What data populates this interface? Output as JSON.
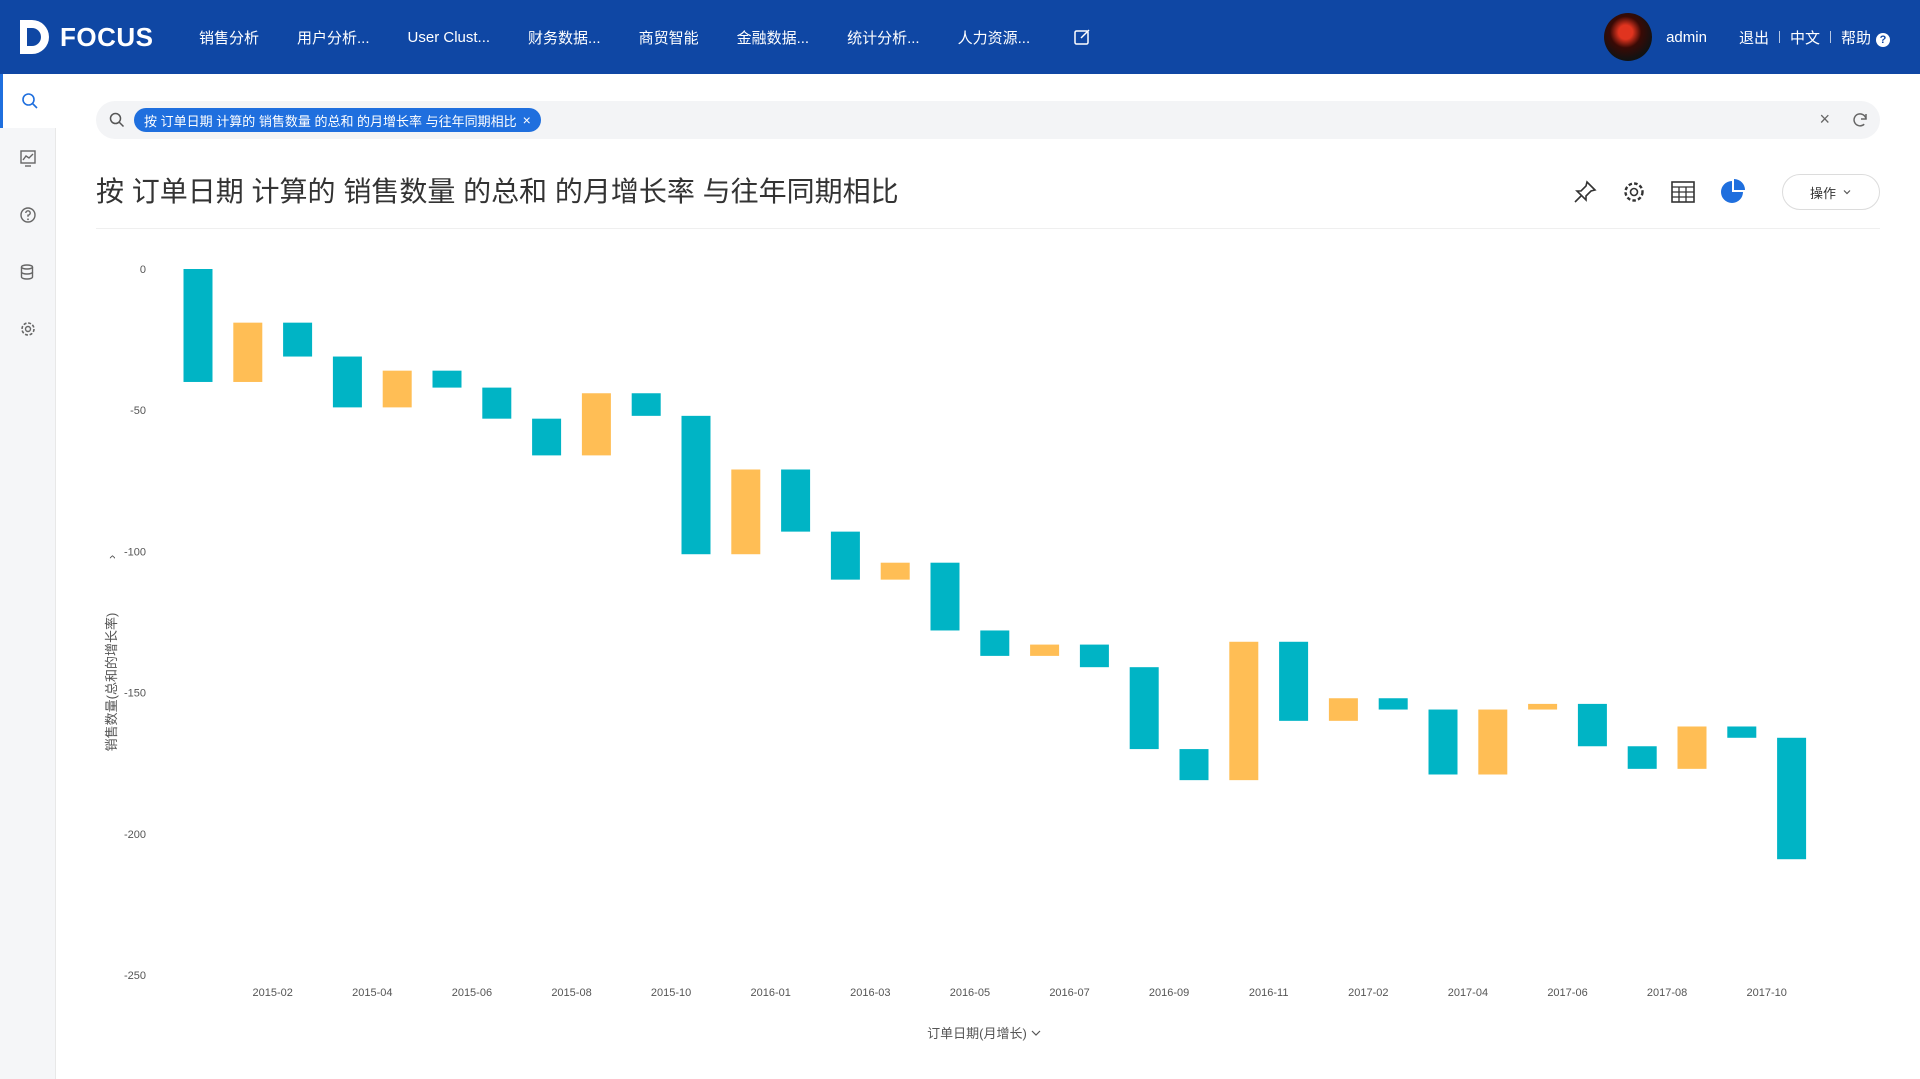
{
  "app": {
    "logo_text": "FOCUS"
  },
  "nav": {
    "items": [
      "销售分析",
      "用户分析...",
      "User Clust...",
      "财务数据...",
      "商贸智能",
      "金融数据...",
      "统计分析...",
      "人力资源..."
    ]
  },
  "user": {
    "name": "admin",
    "logout": "退出",
    "language": "中文",
    "help": "帮助"
  },
  "sidebar": {
    "icons": [
      "search-icon",
      "dashboard-icon",
      "help-icon",
      "database-icon",
      "settings-icon"
    ]
  },
  "search": {
    "token": "按 订单日期 计算的 销售数量 的总和 的月增长率 与往年同期相比",
    "token_close": "×",
    "clear": "×"
  },
  "page": {
    "title": "按 订单日期 计算的 销售数量 的总和 的月增长率 与往年同期相比",
    "ops_label": "操作"
  },
  "toolbar": {
    "icons": [
      "pin-icon",
      "settings-icon",
      "table-icon",
      "pie-chart-icon"
    ]
  },
  "colors": {
    "increase": "#00b4c5",
    "decrease": "#ffbe55",
    "nav_bg": "#0f47a4",
    "accent": "#1f6fde"
  },
  "chart_data": {
    "type": "waterfall",
    "xlabel": "订单日期(月增长)",
    "ylabel": "销售数量(总和的增长率)",
    "ylim": [
      -250,
      0
    ],
    "yticks": [
      0,
      -50,
      -100,
      -150,
      -200,
      -250
    ],
    "xtick_labels": [
      "2015-02",
      "2015-04",
      "2015-06",
      "2015-08",
      "2015-10",
      "2016-01",
      "2016-03",
      "2016-05",
      "2016-07",
      "2016-09",
      "2016-11",
      "2017-02",
      "2017-04",
      "2017-06",
      "2017-08",
      "2017-10"
    ],
    "bars": [
      {
        "start": 0,
        "end": -40,
        "color": "teal"
      },
      {
        "start": -40,
        "end": -19,
        "color": "orange"
      },
      {
        "start": -19,
        "end": -31,
        "color": "teal"
      },
      {
        "start": -31,
        "end": -49,
        "color": "teal"
      },
      {
        "start": -49,
        "end": -36,
        "color": "orange"
      },
      {
        "start": -36,
        "end": -42,
        "color": "teal"
      },
      {
        "start": -42,
        "end": -53,
        "color": "teal"
      },
      {
        "start": -53,
        "end": -66,
        "color": "teal"
      },
      {
        "start": -66,
        "end": -44,
        "color": "orange"
      },
      {
        "start": -44,
        "end": -52,
        "color": "teal"
      },
      {
        "start": -52,
        "end": -101,
        "color": "teal"
      },
      {
        "start": -101,
        "end": -71,
        "color": "orange"
      },
      {
        "start": -71,
        "end": -93,
        "color": "teal"
      },
      {
        "start": -93,
        "end": -110,
        "color": "teal"
      },
      {
        "start": -110,
        "end": -104,
        "color": "orange"
      },
      {
        "start": -104,
        "end": -128,
        "color": "teal"
      },
      {
        "start": -128,
        "end": -137,
        "color": "teal"
      },
      {
        "start": -137,
        "end": -133,
        "color": "orange"
      },
      {
        "start": -133,
        "end": -141,
        "color": "teal"
      },
      {
        "start": -141,
        "end": -170,
        "color": "teal"
      },
      {
        "start": -170,
        "end": -181,
        "color": "teal"
      },
      {
        "start": -181,
        "end": -132,
        "color": "orange"
      },
      {
        "start": -132,
        "end": -160,
        "color": "teal"
      },
      {
        "start": -160,
        "end": -152,
        "color": "orange"
      },
      {
        "start": -152,
        "end": -156,
        "color": "teal"
      },
      {
        "start": -156,
        "end": -179,
        "color": "teal"
      },
      {
        "start": -179,
        "end": -156,
        "color": "orange"
      },
      {
        "start": -156,
        "end": -154,
        "color": "orange"
      },
      {
        "start": -154,
        "end": -169,
        "color": "teal"
      },
      {
        "start": -169,
        "end": -177,
        "color": "teal"
      },
      {
        "start": -177,
        "end": -162,
        "color": "orange"
      },
      {
        "start": -162,
        "end": -166,
        "color": "teal"
      },
      {
        "start": -166,
        "end": -209,
        "color": "teal"
      }
    ]
  }
}
